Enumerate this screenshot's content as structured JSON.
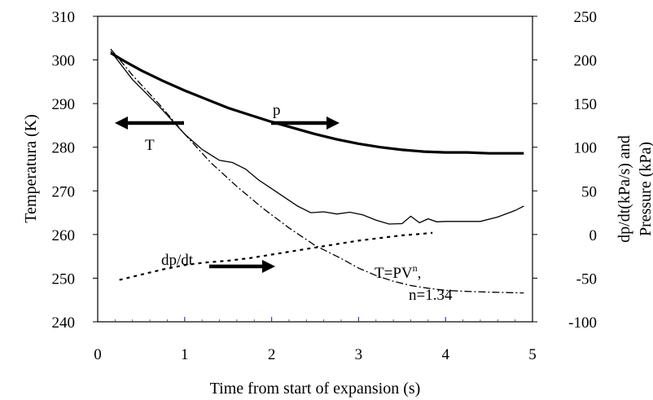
{
  "chart_data": {
    "type": "line",
    "title": "",
    "xlabel": "Time from start of expansion (s)",
    "ylabel_left": "Temperatura (K)",
    "ylabel_right_line1": "dp/dt(kPa/s) and",
    "ylabel_right_line2": "Pressure (kPa)",
    "xlim": [
      0,
      5
    ],
    "ylim_left": [
      240,
      310
    ],
    "ylim_right": [
      -100,
      250
    ],
    "x_ticks": [
      "0",
      "1",
      "2",
      "3",
      "4",
      "5"
    ],
    "y_left_ticks": [
      "240",
      "250",
      "260",
      "270",
      "280",
      "290",
      "300",
      "310"
    ],
    "y_right_ticks": [
      "-100",
      "-50",
      "0",
      "50",
      "100",
      "150",
      "200",
      "250"
    ],
    "grid": false,
    "series": [
      {
        "name": "p",
        "axis": "right",
        "style": "thick-solid",
        "x": [
          0.15,
          0.3,
          0.5,
          0.75,
          1.0,
          1.25,
          1.5,
          1.75,
          2.0,
          2.25,
          2.5,
          2.75,
          3.0,
          3.25,
          3.5,
          3.75,
          4.0,
          4.25,
          4.5,
          4.75,
          4.9
        ],
        "y": [
          208,
          199,
          188,
          176,
          165,
          155,
          145,
          137,
          129,
          122,
          115,
          109,
          104,
          100,
          97,
          95,
          94,
          94,
          93,
          93,
          93
        ]
      },
      {
        "name": "T",
        "axis": "left",
        "style": "thin-solid",
        "x": [
          0.15,
          0.4,
          0.7,
          1.0,
          1.2,
          1.4,
          1.55,
          1.7,
          1.85,
          2.0,
          2.15,
          2.3,
          2.45,
          2.6,
          2.75,
          2.9,
          3.05,
          3.2,
          3.35,
          3.5,
          3.6,
          3.7,
          3.8,
          3.9,
          4.0,
          4.2,
          4.4,
          4.6,
          4.8,
          4.9
        ],
        "y": [
          302,
          295.5,
          289.5,
          283,
          279.5,
          277,
          276.5,
          275,
          272.5,
          270.5,
          268.5,
          266.5,
          265,
          265.2,
          264.7,
          265.1,
          264.5,
          263.3,
          262.4,
          262.5,
          264.2,
          262.7,
          263.6,
          262.9,
          263,
          263,
          263,
          264,
          265.5,
          266.5
        ]
      },
      {
        "name": "dp/dt",
        "axis": "right",
        "style": "dashed",
        "x": [
          0.25,
          0.5,
          0.75,
          1.0,
          1.25,
          1.5,
          1.75,
          2.0,
          2.25,
          2.5,
          2.75,
          3.0,
          3.25,
          3.5,
          3.75,
          3.85
        ],
        "y": [
          -52,
          -46,
          -40,
          -35,
          -32,
          -30,
          -27,
          -23,
          -19,
          -15,
          -11,
          -7,
          -4,
          -1,
          1,
          2
        ]
      },
      {
        "name": "T=PV^n, n=1.34",
        "axis": "left",
        "style": "dash-dot",
        "x": [
          0.15,
          0.4,
          0.7,
          1.0,
          1.3,
          1.6,
          1.9,
          2.2,
          2.5,
          2.8,
          3.0,
          3.2,
          3.4,
          3.6,
          3.8,
          4.0,
          4.2,
          4.5,
          4.9
        ],
        "y": [
          302.5,
          296.5,
          290,
          283,
          276.5,
          271,
          266,
          261.5,
          257.5,
          254.5,
          252.3,
          250.6,
          249.3,
          248.3,
          247.7,
          247.2,
          247,
          246.8,
          246.6
        ]
      }
    ],
    "annotations": {
      "label_p": "p",
      "label_T": "T",
      "label_dpdt": "dp/dt",
      "label_model_main": "T=PV",
      "label_model_sup": "n",
      "label_model_sep": ",",
      "label_model_n": "n=1.34"
    }
  }
}
